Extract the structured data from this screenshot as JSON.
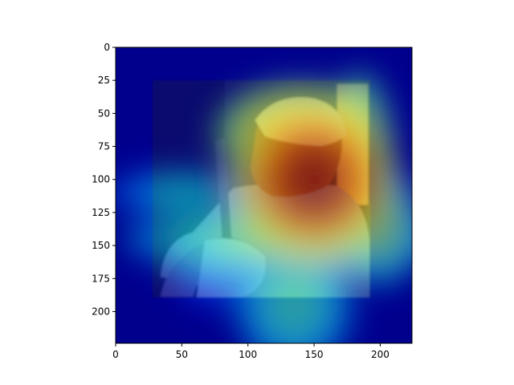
{
  "chart_data": {
    "type": "heatmap",
    "title": "",
    "xlabel": "",
    "ylabel": "",
    "xlim": [
      0,
      224
    ],
    "ylim": [
      224,
      0
    ],
    "colormap": "jet",
    "x_ticks": [
      0,
      50,
      100,
      150,
      200
    ],
    "y_ticks": [
      0,
      25,
      50,
      75,
      100,
      125,
      150,
      175,
      200
    ],
    "background_image": {
      "subject": "photo of a man in a beanie, seen in profile",
      "x_range": [
        28,
        192
      ],
      "y_range": [
        25,
        190
      ]
    },
    "heat_blobs": [
      {
        "cx": 150,
        "cy": 100,
        "rx": 48,
        "ry": 48,
        "intensity": 1.0
      },
      {
        "cx": 140,
        "cy": 65,
        "rx": 50,
        "ry": 30,
        "intensity": 0.8
      },
      {
        "cx": 185,
        "cy": 90,
        "rx": 20,
        "ry": 55,
        "intensity": 0.75
      },
      {
        "cx": 130,
        "cy": 145,
        "rx": 95,
        "ry": 22,
        "intensity": 0.5
      },
      {
        "cx": 200,
        "cy": 135,
        "rx": 25,
        "ry": 35,
        "intensity": 0.55
      },
      {
        "cx": 135,
        "cy": 195,
        "rx": 35,
        "ry": 40,
        "intensity": 0.45
      },
      {
        "cx": 50,
        "cy": 110,
        "rx": 45,
        "ry": 14,
        "intensity": 0.35
      },
      {
        "cx": 80,
        "cy": 165,
        "rx": 30,
        "ry": 25,
        "intensity": 0.25
      }
    ]
  }
}
